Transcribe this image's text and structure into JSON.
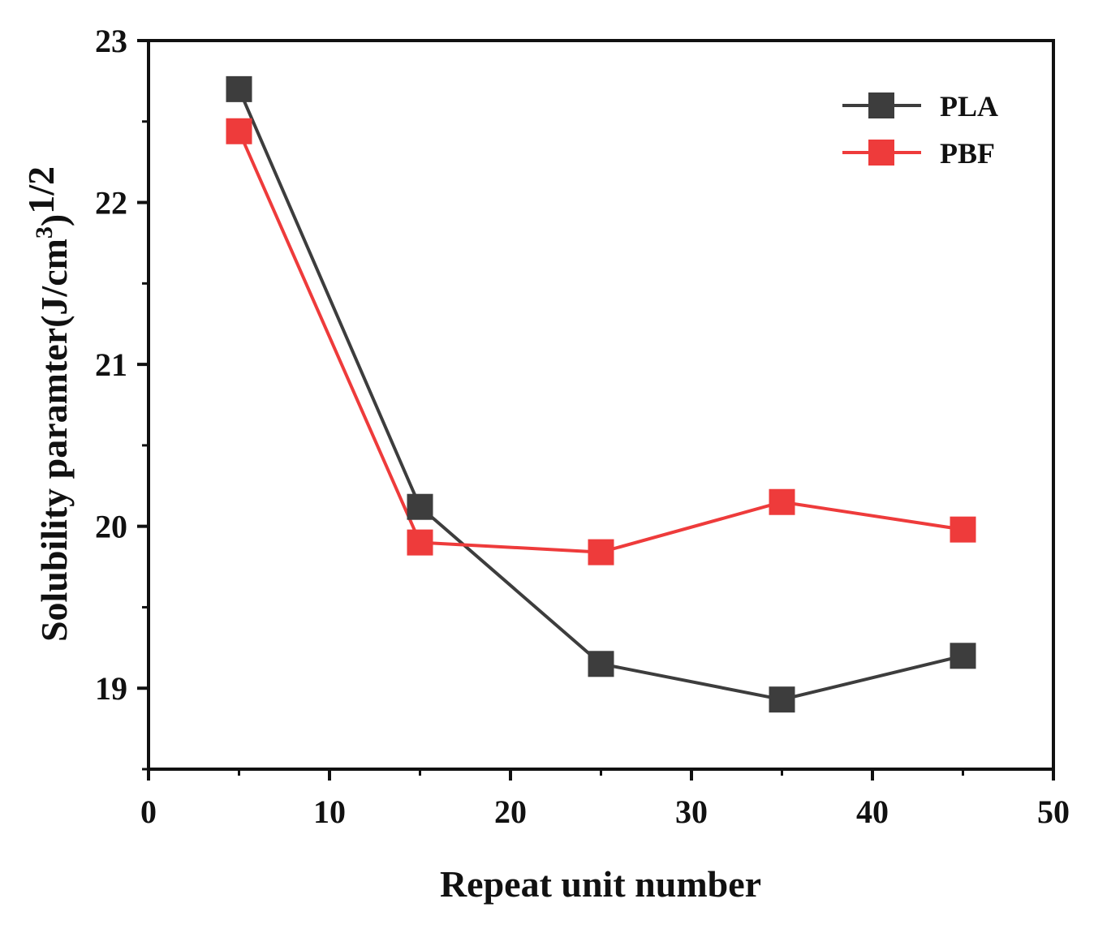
{
  "chart_data": {
    "type": "line",
    "title": "",
    "xlabel": "Repeat unit number",
    "ylabel": {
      "main": "Solubility paramter(J/cm",
      "sup": "3",
      "close": ")",
      "power": "1/2"
    },
    "xlim": [
      0,
      50
    ],
    "ylim": [
      18.5,
      23
    ],
    "x_ticks": [
      0,
      10,
      20,
      30,
      40,
      50
    ],
    "x_tick_labels": [
      "0",
      "10",
      "20",
      "30",
      "40",
      "50"
    ],
    "y_ticks": [
      19,
      20,
      21,
      22,
      23
    ],
    "y_tick_labels": [
      "19",
      "20",
      "21",
      "22",
      "23"
    ],
    "x": [
      5,
      15,
      25,
      35,
      45
    ],
    "series": [
      {
        "name": "PLA",
        "color": "#3d3d3d",
        "marker": "square",
        "values": [
          22.7,
          20.12,
          19.15,
          18.93,
          19.2
        ]
      },
      {
        "name": "PBF",
        "color": "#ee3b3b",
        "marker": "square",
        "values": [
          22.44,
          19.9,
          19.84,
          20.15,
          19.98
        ]
      }
    ],
    "legend_position": "top-right",
    "grid": false
  }
}
